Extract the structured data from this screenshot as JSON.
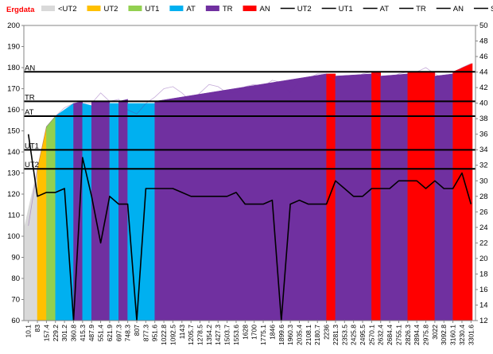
{
  "chart_data": {
    "type": "bar",
    "title": "Ergdata",
    "legend": [
      {
        "name": "<UT2",
        "kind": "bar",
        "color": "#d9d9d9"
      },
      {
        "name": "UT2",
        "kind": "bar",
        "color": "#ffc000"
      },
      {
        "name": "UT1",
        "kind": "bar",
        "color": "#92d050"
      },
      {
        "name": "AT",
        "kind": "bar",
        "color": "#00b0f0"
      },
      {
        "name": "TR",
        "kind": "bar",
        "color": "#7030a0"
      },
      {
        "name": "AN",
        "kind": "bar",
        "color": "#ff0000"
      },
      {
        "name": "UT2",
        "kind": "line",
        "color": "#000000"
      },
      {
        "name": "UT1",
        "kind": "line",
        "color": "#000000"
      },
      {
        "name": "AT",
        "kind": "line",
        "color": "#000000"
      },
      {
        "name": "TR",
        "kind": "line",
        "color": "#000000"
      },
      {
        "name": "AN",
        "kind": "line",
        "color": "#000000"
      },
      {
        "name": "SPM",
        "kind": "line",
        "color": "#000000"
      }
    ],
    "legend_position": "top",
    "x_ticks": [
      "10.1",
      "83",
      "157.4",
      "229.2",
      "301.2",
      "360.8",
      "415.3",
      "487.9",
      "551.4",
      "621.9",
      "697.3",
      "748.3",
      "807",
      "877.3",
      "951.6",
      "1022.8",
      "1092.5",
      "1143",
      "1205.7",
      "1278.5",
      "1354.2",
      "1427.3",
      "1503.7",
      "1553.6",
      "1628",
      "1700",
      "1775.1",
      "1846",
      "1899.6",
      "1960.3",
      "2035.4",
      "2108.1",
      "2180.7",
      "2236",
      "2281.3",
      "2353.5",
      "2425.8",
      "2495.5",
      "2570.1",
      "2632.4",
      "2684.4",
      "2755.1",
      "2826.3",
      "2894.4",
      "2975.8",
      "3022",
      "3092.8",
      "3160.1",
      "3230.4",
      "3301.6"
    ],
    "y_left": {
      "min": 60,
      "max": 200,
      "ticks": [
        60,
        70,
        80,
        90,
        100,
        110,
        120,
        130,
        140,
        150,
        160,
        170,
        180,
        190,
        200
      ]
    },
    "y_right": {
      "min": 12,
      "max": 50,
      "ticks": [
        12,
        14,
        16,
        18,
        20,
        22,
        24,
        26,
        28,
        30,
        32,
        34,
        36,
        38,
        40,
        42,
        44,
        46,
        48,
        50
      ]
    },
    "gridlines": false,
    "zone_thresholds": [
      {
        "name": "UT2",
        "value": 132
      },
      {
        "name": "UT1",
        "value": 141
      },
      {
        "name": "AT",
        "value": 157
      },
      {
        "name": "TR",
        "value": 164
      },
      {
        "name": "AN",
        "value": 178
      }
    ],
    "zone_colors": {
      "<UT2": "#d9d9d9",
      "UT2": "#ffc000",
      "UT1": "#92d050",
      "AT": "#00b0f0",
      "TR": "#7030a0",
      "AN": "#ff0000"
    },
    "heart_rate_segments": [
      {
        "from": "10.1",
        "to": "83",
        "zone": "<UT2",
        "start": 105,
        "end": 132
      },
      {
        "from": "83",
        "to": "157.4",
        "zone": "UT2",
        "start": 132,
        "end": 152
      },
      {
        "from": "157.4",
        "to": "229.2",
        "zone": "UT1",
        "start": 152,
        "end": 157
      },
      {
        "from": "229.2",
        "to": "360.8",
        "zone": "AT",
        "start": 157,
        "end": 163
      },
      {
        "from": "360.8",
        "to": "415.3",
        "zone": "TR",
        "start": 163,
        "end": 164
      },
      {
        "from": "415.3",
        "to": "487.9",
        "zone": "AT",
        "start": 163,
        "end": 162
      },
      {
        "from": "487.9",
        "to": "621.9",
        "zone": "TR",
        "start": 164,
        "end": 164
      },
      {
        "from": "621.9",
        "to": "697.3",
        "zone": "AT",
        "start": 163,
        "end": 163
      },
      {
        "from": "697.3",
        "to": "748.3",
        "zone": "TR",
        "start": 164,
        "end": 165
      },
      {
        "from": "748.3",
        "to": "951.6",
        "zone": "AT",
        "start": 163,
        "end": 163
      },
      {
        "from": "951.6",
        "to": "2236",
        "zone": "TR",
        "start": 164,
        "end": 177
      },
      {
        "from": "2236",
        "to": "2281.3",
        "zone": "AN",
        "start": 177,
        "end": 177
      },
      {
        "from": "2281.3",
        "to": "2570.1",
        "zone": "TR",
        "start": 176,
        "end": 177
      },
      {
        "from": "2570.1",
        "to": "2632.4",
        "zone": "AN",
        "start": 178,
        "end": 178
      },
      {
        "from": "2632.4",
        "to": "2826.3",
        "zone": "TR",
        "start": 176,
        "end": 177
      },
      {
        "from": "2826.3",
        "to": "3022",
        "zone": "AN",
        "start": 178,
        "end": 178
      },
      {
        "from": "3022",
        "to": "3160.1",
        "zone": "TR",
        "start": 176,
        "end": 177
      },
      {
        "from": "3160.1",
        "to": "3301.6",
        "zone": "AN",
        "start": 178,
        "end": 182
      }
    ],
    "heart_rate_profile": [
      [
        "10.1",
        105
      ],
      [
        "83",
        132
      ],
      [
        "157.4",
        152
      ],
      [
        "229.2",
        157
      ],
      [
        "301.2",
        161
      ],
      [
        "360.8",
        163
      ],
      [
        "415.3",
        163
      ],
      [
        "487.9",
        163
      ],
      [
        "551.4",
        168
      ],
      [
        "621.9",
        164
      ],
      [
        "697.3",
        165
      ],
      [
        "748.3",
        160
      ],
      [
        "807",
        158
      ],
      [
        "877.3",
        163
      ],
      [
        "951.6",
        166
      ],
      [
        "1022.8",
        170
      ],
      [
        "1092.5",
        171
      ],
      [
        "1143",
        168
      ],
      [
        "1205.7",
        164
      ],
      [
        "1278.5",
        168
      ],
      [
        "1354.2",
        172
      ],
      [
        "1427.3",
        171
      ],
      [
        "1503.7",
        168
      ],
      [
        "1553.6",
        168
      ],
      [
        "1628",
        171
      ],
      [
        "1700",
        172
      ],
      [
        "1775.1",
        171
      ],
      [
        "1846",
        174
      ],
      [
        "1899.6",
        173
      ],
      [
        "1960.3",
        168
      ],
      [
        "2035.4",
        174
      ],
      [
        "2108.1",
        175
      ],
      [
        "2180.7",
        177
      ],
      [
        "2236",
        177
      ],
      [
        "2281.3",
        174
      ],
      [
        "2353.5",
        174
      ],
      [
        "2425.8",
        175
      ],
      [
        "2495.5",
        177
      ],
      [
        "2570.1",
        178
      ],
      [
        "2632.4",
        176
      ],
      [
        "2684.4",
        175
      ],
      [
        "2755.1",
        177
      ],
      [
        "2826.3",
        178
      ],
      [
        "2894.4",
        178
      ],
      [
        "2975.8",
        180
      ],
      [
        "3022",
        177
      ],
      [
        "3092.8",
        175
      ],
      [
        "3160.1",
        177
      ],
      [
        "3230.4",
        180
      ],
      [
        "3301.6",
        182
      ]
    ],
    "spm_profile": [
      [
        "10.1",
        36
      ],
      [
        "83",
        28
      ],
      [
        "157.4",
        28.5
      ],
      [
        "229.2",
        28.5
      ],
      [
        "301.2",
        29
      ],
      [
        "360.8",
        12
      ],
      [
        "415.3",
        33
      ],
      [
        "487.9",
        28
      ],
      [
        "551.4",
        22
      ],
      [
        "621.9",
        28
      ],
      [
        "697.3",
        27
      ],
      [
        "748.3",
        27
      ],
      [
        "807",
        12
      ],
      [
        "877.3",
        29
      ],
      [
        "951.6",
        29
      ],
      [
        "1022.8",
        29
      ],
      [
        "1092.5",
        29
      ],
      [
        "1143",
        28.5
      ],
      [
        "1205.7",
        28
      ],
      [
        "1278.5",
        28
      ],
      [
        "1354.2",
        28
      ],
      [
        "1427.3",
        28
      ],
      [
        "1503.7",
        28
      ],
      [
        "1553.6",
        28.5
      ],
      [
        "1628",
        27
      ],
      [
        "1700",
        27
      ],
      [
        "1775.1",
        27
      ],
      [
        "1846",
        27.5
      ],
      [
        "1899.6",
        12
      ],
      [
        "1960.3",
        27
      ],
      [
        "2035.4",
        27.5
      ],
      [
        "2108.1",
        27
      ],
      [
        "2180.7",
        27
      ],
      [
        "2236",
        27
      ],
      [
        "2281.3",
        30
      ],
      [
        "2353.5",
        29
      ],
      [
        "2425.8",
        28
      ],
      [
        "2495.5",
        28
      ],
      [
        "2570.1",
        29
      ],
      [
        "2632.4",
        29
      ],
      [
        "2684.4",
        29
      ],
      [
        "2755.1",
        30
      ],
      [
        "2826.3",
        30
      ],
      [
        "2894.4",
        30
      ],
      [
        "2975.8",
        29
      ],
      [
        "3022",
        30
      ],
      [
        "3092.8",
        29
      ],
      [
        "3160.1",
        29
      ],
      [
        "3230.4",
        31
      ],
      [
        "3301.6",
        27
      ]
    ]
  }
}
